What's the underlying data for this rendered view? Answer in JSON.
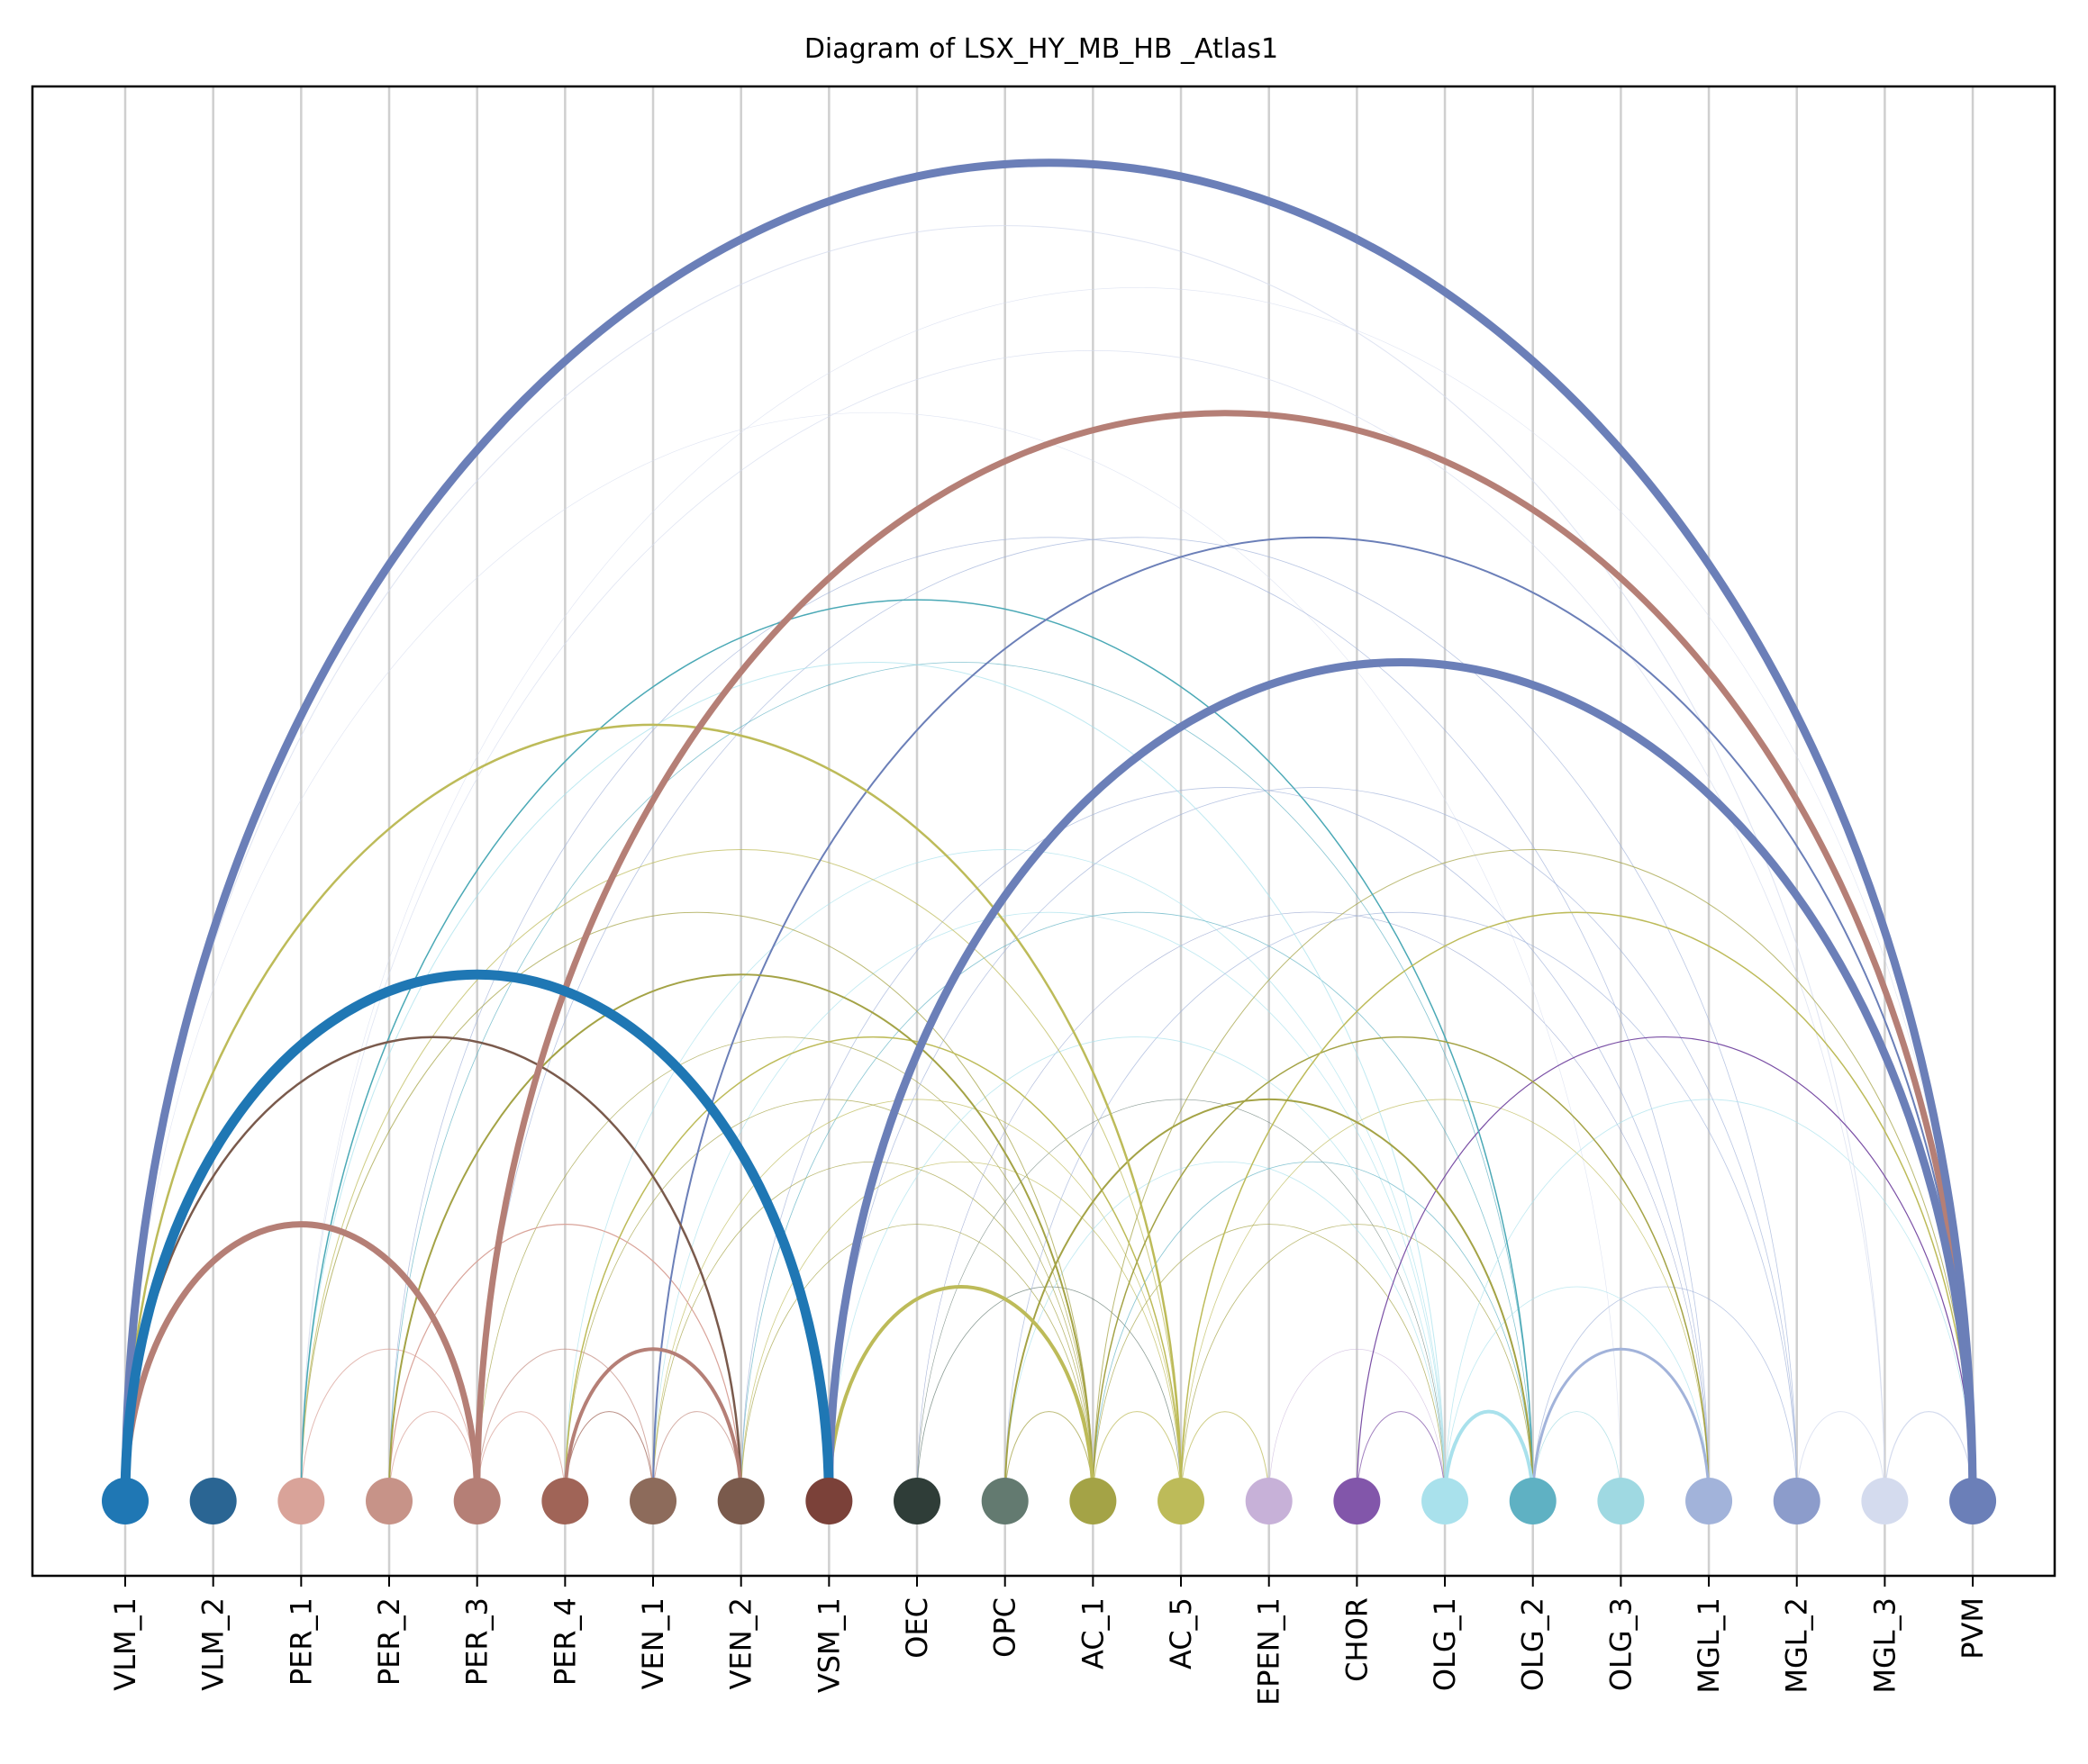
{
  "title": "Diagram of LSX_HY_MB_HB _Atlas1",
  "nodes": [
    {
      "label": "VLM_1",
      "color": "#1f77b4"
    },
    {
      "label": "VLM_2",
      "color": "#2a6593"
    },
    {
      "label": "PER_1",
      "color": "#d9a399"
    },
    {
      "label": "PER_2",
      "color": "#c79388"
    },
    {
      "label": "PER_3",
      "color": "#b57f76"
    },
    {
      "label": "PER_4",
      "color": "#a06457"
    },
    {
      "label": "VEN_1",
      "color": "#8d6b5b"
    },
    {
      "label": "VEN_2",
      "color": "#7a5a4c"
    },
    {
      "label": "VSM_1",
      "color": "#7b4139"
    },
    {
      "label": "OEC",
      "color": "#2f3d38"
    },
    {
      "label": "OPC",
      "color": "#637a70"
    },
    {
      "label": "AC_1",
      "color": "#a4a346"
    },
    {
      "label": "AC_5",
      "color": "#bdbb59"
    },
    {
      "label": "EPEN_1",
      "color": "#c7b1d8"
    },
    {
      "label": "CHOR",
      "color": "#8256aa"
    },
    {
      "label": "OLG_1",
      "color": "#a9e1ec"
    },
    {
      "label": "OLG_2",
      "color": "#5fb1c3"
    },
    {
      "label": "OLG_3",
      "color": "#9fd9e2"
    },
    {
      "label": "MGL_1",
      "color": "#a2b3da"
    },
    {
      "label": "MGL_2",
      "color": "#8c9ccb"
    },
    {
      "label": "MGL_3",
      "color": "#d4dbee"
    },
    {
      "label": "PVM",
      "color": "#6b7fb8"
    }
  ],
  "links": [
    {
      "source": "VLM_1",
      "target": "PVM",
      "color": "#6b7fb8",
      "weight": 9
    },
    {
      "source": "VLM_1",
      "target": "VSM_1",
      "color": "#1f77b4",
      "weight": 11
    },
    {
      "source": "VLM_1",
      "target": "PER_3",
      "color": "#b57f76",
      "weight": 7
    },
    {
      "source": "VLM_1",
      "target": "VEN_2",
      "color": "#7a5a4c",
      "weight": 2.5
    },
    {
      "source": "VLM_1",
      "target": "AC_5",
      "color": "#bdbb59",
      "weight": 2.5
    },
    {
      "source": "VLM_1",
      "target": "MGL_3",
      "color": "#d4dbee",
      "weight": 1
    },
    {
      "source": "PER_3",
      "target": "PVM",
      "color": "#b57f76",
      "weight": 7
    },
    {
      "source": "VSM_1",
      "target": "PVM",
      "color": "#6b7fb8",
      "weight": 9
    },
    {
      "source": "PER_4",
      "target": "VEN_2",
      "color": "#b57f76",
      "weight": 4
    },
    {
      "source": "VSM_1",
      "target": "AC_1",
      "color": "#bdbb59",
      "weight": 4
    },
    {
      "source": "OLG_1",
      "target": "OLG_2",
      "color": "#a9e1ec",
      "weight": 4
    },
    {
      "source": "OLG_2",
      "target": "MGL_1",
      "color": "#a2b3da",
      "weight": 3
    },
    {
      "source": "VEN_1",
      "target": "PVM",
      "color": "#6b7fb8",
      "weight": 2
    },
    {
      "source": "PER_1",
      "target": "OLG_2",
      "color": "#4ba9b6",
      "weight": 1.5
    },
    {
      "source": "PER_2",
      "target": "AC_1",
      "color": "#a4a346",
      "weight": 2
    },
    {
      "source": "CHOR",
      "target": "PVM",
      "color": "#7a4fa5",
      "weight": 1.2
    },
    {
      "source": "PER_4",
      "target": "AC_5",
      "color": "#bdbb59",
      "weight": 1.5
    },
    {
      "source": "OPC",
      "target": "OLG_2",
      "color": "#a4a346",
      "weight": 2
    },
    {
      "source": "AC_1",
      "target": "MGL_1",
      "color": "#a4a346",
      "weight": 1.5
    },
    {
      "source": "AC_5",
      "target": "PVM",
      "color": "#bdbb59",
      "weight": 1.5
    },
    {
      "source": "PER_1",
      "target": "PER_3",
      "color": "#d9a399",
      "weight": 1
    },
    {
      "source": "PER_2",
      "target": "VEN_2",
      "color": "#d9a399",
      "weight": 1.2
    },
    {
      "source": "PER_2",
      "target": "PER_3",
      "color": "#d9a399",
      "weight": 1
    },
    {
      "source": "PER_3",
      "target": "PER_4",
      "color": "#d9a399",
      "weight": 1
    },
    {
      "source": "PER_4",
      "target": "VEN_1",
      "color": "#a06457",
      "weight": 1
    },
    {
      "source": "VEN_1",
      "target": "VEN_2",
      "color": "#c79388",
      "weight": 1
    },
    {
      "source": "PER_3",
      "target": "VEN_1",
      "color": "#c79388",
      "weight": 1
    },
    {
      "source": "OPC",
      "target": "AC_1",
      "color": "#a4a346",
      "weight": 1
    },
    {
      "source": "AC_1",
      "target": "AC_5",
      "color": "#bdbb59",
      "weight": 1
    },
    {
      "source": "AC_5",
      "target": "EPEN_1",
      "color": "#bdbb59",
      "weight": 1
    },
    {
      "source": "CHOR",
      "target": "OLG_1",
      "color": "#8256aa",
      "weight": 1
    },
    {
      "source": "MGL_2",
      "target": "MGL_3",
      "color": "#d4dbee",
      "weight": 1
    },
    {
      "source": "MGL_3",
      "target": "PVM",
      "color": "#d4dbee",
      "weight": 1.2
    },
    {
      "source": "PER_1",
      "target": "OLG_1",
      "color": "#a9e1ec",
      "weight": 1
    },
    {
      "source": "PER_1",
      "target": "MGL_3",
      "color": "#d4dbee",
      "weight": 0.8
    },
    {
      "source": "PER_2",
      "target": "MGL_1",
      "color": "#a2b3da",
      "weight": 0.8
    },
    {
      "source": "PER_3",
      "target": "MGL_2",
      "color": "#a2b3da",
      "weight": 0.8
    },
    {
      "source": "PER_4",
      "target": "OLG_1",
      "color": "#a9e1ec",
      "weight": 0.8
    },
    {
      "source": "VEN_1",
      "target": "OLG_1",
      "color": "#a9e1ec",
      "weight": 0.8
    },
    {
      "source": "VEN_2",
      "target": "OLG_2",
      "color": "#5fb1c3",
      "weight": 0.8
    },
    {
      "source": "VEN_2",
      "target": "MGL_1",
      "color": "#a2b3da",
      "weight": 0.8
    },
    {
      "source": "PER_1",
      "target": "AC_1",
      "color": "#a4a346",
      "weight": 1
    },
    {
      "source": "PER_1",
      "target": "AC_5",
      "color": "#bdbb59",
      "weight": 1
    },
    {
      "source": "PER_3",
      "target": "AC_1",
      "color": "#a4a346",
      "weight": 0.8
    },
    {
      "source": "VEN_1",
      "target": "AC_5",
      "color": "#bdbb59",
      "weight": 0.8
    },
    {
      "source": "VEN_2",
      "target": "AC_1",
      "color": "#a4a346",
      "weight": 0.8
    },
    {
      "source": "VEN_2",
      "target": "AC_5",
      "color": "#bdbb59",
      "weight": 0.8
    },
    {
      "source": "OEC",
      "target": "AC_5",
      "color": "#637a70",
      "weight": 0.8
    },
    {
      "source": "OEC",
      "target": "OLG_1",
      "color": "#637a70",
      "weight": 0.6
    },
    {
      "source": "OPC",
      "target": "MGL_2",
      "color": "#a2b3da",
      "weight": 0.8
    },
    {
      "source": "OPC",
      "target": "OLG_1",
      "color": "#a9e1ec",
      "weight": 0.8
    },
    {
      "source": "AC_1",
      "target": "OLG_2",
      "color": "#5fb1c3",
      "weight": 0.8
    },
    {
      "source": "AC_1",
      "target": "PVM",
      "color": "#a4a346",
      "weight": 1
    },
    {
      "source": "AC_5",
      "target": "MGL_1",
      "color": "#bdbb59",
      "weight": 0.8
    },
    {
      "source": "AC_5",
      "target": "OLG_2",
      "color": "#a4a346",
      "weight": 0.8
    },
    {
      "source": "EPEN_1",
      "target": "OLG_1",
      "color": "#c7b1d8",
      "weight": 0.6
    },
    {
      "source": "OLG_1",
      "target": "MGL_1",
      "color": "#a9e1ec",
      "weight": 0.8
    },
    {
      "source": "OLG_1",
      "target": "PVM",
      "color": "#a9e1ec",
      "weight": 0.8
    },
    {
      "source": "OLG_2",
      "target": "MGL_2",
      "color": "#a2b3da",
      "weight": 0.8
    },
    {
      "source": "OLG_2",
      "target": "OLG_3",
      "color": "#9fd9e2",
      "weight": 0.8
    },
    {
      "source": "VSM_1",
      "target": "OLG_1",
      "color": "#a9e1ec",
      "weight": 0.8
    },
    {
      "source": "VSM_1",
      "target": "MGL_2",
      "color": "#a2b3da",
      "weight": 0.8
    },
    {
      "source": "OEC",
      "target": "MGL_1",
      "color": "#8c9ccb",
      "weight": 0.6
    },
    {
      "source": "PER_2",
      "target": "OLG_2",
      "color": "#5fb1c3",
      "weight": 0.8
    },
    {
      "source": "VLM_1",
      "target": "OLG_3",
      "color": "#d4dbee",
      "weight": 0.6
    },
    {
      "source": "PER_1",
      "target": "PVM",
      "color": "#d4dbee",
      "weight": 0.6
    },
    {
      "source": "AC_1",
      "target": "OLG_1",
      "color": "#a4a346",
      "weight": 0.8
    },
    {
      "source": "VEN_1",
      "target": "AC_1",
      "color": "#a4a346",
      "weight": 0.8
    },
    {
      "source": "PER_4",
      "target": "AC_1",
      "color": "#a4a346",
      "weight": 0.8
    }
  ]
}
